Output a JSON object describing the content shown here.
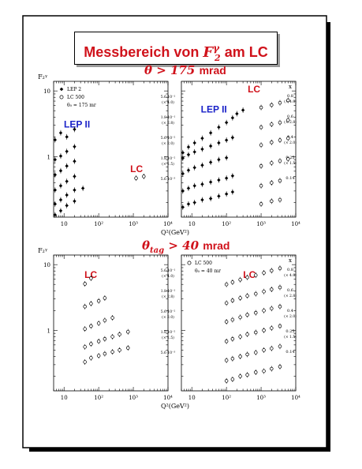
{
  "page": {
    "title_text": "Messbereich von",
    "title_math": "F",
    "title_sup": "γ",
    "title_sub": "2",
    "title_suffix": "am LC",
    "cut_top_math": "θ > 175",
    "cut_top_unit": "mrad",
    "cut_bottom_math": "θ",
    "cut_bottom_sub": "tag",
    "cut_bottom_rest": "> 40",
    "cut_bottom_unit": "mrad",
    "ylabel": "F₂ᵞ",
    "xlabel": "Q²(GeV²)"
  },
  "chart_data": [
    {
      "type": "scatter",
      "panel": "top-left",
      "xscale": "log",
      "yscale": "log",
      "xlim": [
        5,
        10000
      ],
      "ylim": [
        0.12,
        14
      ],
      "xticks": [
        "10",
        "10²",
        "10³",
        "10⁴"
      ],
      "yticks": [
        "1",
        "10"
      ],
      "legend": {
        "entries": [
          "LEP 2",
          "LC 500",
          "θ₀ = 175 mr"
        ],
        "placement": "top-left"
      },
      "annotations": [
        {
          "text": "LEP II",
          "color": "#1a22c8"
        },
        {
          "text": "LC",
          "color": "#d0121b"
        }
      ],
      "series": [
        {
          "name": "LEP 2",
          "marker": "filled",
          "points": [
            [
              5.5,
              0.13
            ],
            [
              8,
              0.15
            ],
            [
              12,
              0.18
            ],
            [
              20,
              0.21
            ],
            [
              5.5,
              0.19
            ],
            [
              8,
              0.22
            ],
            [
              12,
              0.26
            ],
            [
              20,
              0.31
            ],
            [
              35,
              0.33
            ],
            [
              5.5,
              0.31
            ],
            [
              8,
              0.36
            ],
            [
              12,
              0.42
            ],
            [
              20,
              0.5
            ],
            [
              5.5,
              0.53
            ],
            [
              8,
              0.61
            ],
            [
              12,
              0.72
            ],
            [
              20,
              0.85
            ],
            [
              5.5,
              0.9
            ],
            [
              8,
              1.02
            ],
            [
              12,
              1.2
            ],
            [
              20,
              1.42
            ],
            [
              5.5,
              1.8
            ],
            [
              8,
              2.3
            ],
            [
              12,
              2.0
            ],
            [
              20,
              2.6
            ]
          ]
        },
        {
          "name": "LC 500",
          "marker": "open",
          "points": [
            [
              1200,
              0.47
            ],
            [
              2000,
              0.5
            ]
          ]
        }
      ]
    },
    {
      "type": "scatter",
      "panel": "top-right",
      "xscale": "log",
      "yscale": "log",
      "xlim": [
        5,
        10000
      ],
      "ylim": [
        0.12,
        14
      ],
      "xticks": [
        "10",
        "10²",
        "10³",
        "10⁴"
      ],
      "yticks": [],
      "x_column": {
        "header": "x",
        "rows": [
          {
            "x": "0.8",
            "scale": "(× 4.0)",
            "mid_label": "5.6 10⁻¹"
          },
          {
            "x": "0.6",
            "scale": "(× 2.8)",
            "mid_label": "1.8 10⁻¹"
          },
          {
            "x": "0.4",
            "scale": "(× 2.0)",
            "mid_label": "5.6 10⁻²"
          },
          {
            "x": "0.25",
            "scale": "(× 1.5)",
            "mid_label": "1.8 10⁻²"
          },
          {
            "x": "0.14",
            "scale": "",
            "mid_label": "5.6 10⁻³"
          }
        ]
      },
      "annotations": [
        {
          "text": "LEP II",
          "color": "#1a22c8"
        },
        {
          "text": "LC",
          "color": "#d0121b"
        }
      ],
      "series": [
        {
          "name": "LEP 2",
          "marker": "filled",
          "points": [
            [
              5.5,
              0.17
            ],
            [
              8,
              0.19
            ],
            [
              12,
              0.2
            ],
            [
              20,
              0.22
            ],
            [
              35,
              0.23
            ],
            [
              60,
              0.25
            ],
            [
              100,
              0.27
            ],
            [
              150,
              0.29
            ],
            [
              5.5,
              0.3
            ],
            [
              8,
              0.33
            ],
            [
              12,
              0.36
            ],
            [
              20,
              0.38
            ],
            [
              35,
              0.41
            ],
            [
              60,
              0.44
            ],
            [
              100,
              0.47
            ],
            [
              150,
              0.51
            ],
            [
              5.5,
              0.55
            ],
            [
              8,
              0.62
            ],
            [
              12,
              0.68
            ],
            [
              20,
              0.74
            ],
            [
              35,
              0.82
            ],
            [
              60,
              0.9
            ],
            [
              100,
              0.96
            ],
            [
              5.5,
              0.95
            ],
            [
              8,
              1.07
            ],
            [
              12,
              1.18
            ],
            [
              20,
              1.3
            ],
            [
              35,
              1.45
            ],
            [
              60,
              1.62
            ],
            [
              100,
              1.78
            ],
            [
              150,
              1.95
            ],
            [
              5.5,
              1.15
            ],
            [
              8,
              1.4
            ],
            [
              12,
              1.62
            ],
            [
              20,
              1.9
            ],
            [
              35,
              2.3
            ],
            [
              60,
              2.8
            ],
            [
              100,
              3.3
            ],
            [
              150,
              3.9
            ],
            [
              200,
              4.5
            ],
            [
              300,
              5.1
            ]
          ]
        },
        {
          "name": "LC 500",
          "marker": "open",
          "points": [
            [
              1000,
              0.19
            ],
            [
              2000,
              0.21
            ],
            [
              3500,
              0.22
            ],
            [
              1000,
              0.36
            ],
            [
              2000,
              0.4
            ],
            [
              3500,
              0.43
            ],
            [
              1000,
              0.72
            ],
            [
              2000,
              0.8
            ],
            [
              3500,
              0.86
            ],
            [
              6000,
              0.92
            ],
            [
              1000,
              1.5
            ],
            [
              2000,
              1.65
            ],
            [
              3500,
              1.78
            ],
            [
              6000,
              1.9
            ],
            [
              1000,
              2.8
            ],
            [
              2000,
              3.1
            ],
            [
              3500,
              3.3
            ],
            [
              6000,
              3.6
            ],
            [
              1000,
              5.6
            ],
            [
              2000,
              6.1
            ],
            [
              3500,
              6.6
            ],
            [
              6000,
              7.2
            ]
          ]
        }
      ]
    },
    {
      "type": "scatter",
      "panel": "bottom-left",
      "xscale": "log",
      "yscale": "log",
      "xlim": [
        5,
        10000
      ],
      "ylim": [
        0.12,
        14
      ],
      "xticks": [
        "10",
        "10²",
        "10³",
        "10⁴"
      ],
      "yticks": [
        "1",
        "10"
      ],
      "annotations": [
        {
          "text": "LC",
          "color": "#d0121b"
        }
      ],
      "series": [
        {
          "name": "LC 500",
          "marker": "open",
          "points": [
            [
              40,
              0.33
            ],
            [
              60,
              0.38
            ],
            [
              100,
              0.41
            ],
            [
              150,
              0.44
            ],
            [
              250,
              0.47
            ],
            [
              400,
              0.5
            ],
            [
              700,
              0.54
            ],
            [
              40,
              0.56
            ],
            [
              60,
              0.62
            ],
            [
              100,
              0.68
            ],
            [
              150,
              0.74
            ],
            [
              250,
              0.8
            ],
            [
              400,
              0.87
            ],
            [
              700,
              0.95
            ],
            [
              40,
              1.05
            ],
            [
              60,
              1.16
            ],
            [
              100,
              1.28
            ],
            [
              150,
              1.42
            ],
            [
              250,
              1.55
            ],
            [
              40,
              2.3
            ],
            [
              60,
              2.55
            ],
            [
              100,
              2.8
            ],
            [
              150,
              3.1
            ],
            [
              40,
              5.1
            ],
            [
              60,
              6.2
            ]
          ]
        }
      ]
    },
    {
      "type": "scatter",
      "panel": "bottom-right",
      "xscale": "log",
      "yscale": "log",
      "xlim": [
        5,
        10000
      ],
      "ylim": [
        0.12,
        14
      ],
      "xticks": [
        "10",
        "10²",
        "10³",
        "10⁴"
      ],
      "yticks": [],
      "legend": {
        "entries": [
          "LC 500",
          "θ₀ = 40 mr"
        ],
        "placement": "top-left"
      },
      "x_column": {
        "header": "x",
        "rows": [
          {
            "x": "0.8",
            "scale": "(× 4.0)",
            "mid_label": "5.6 10⁻¹"
          },
          {
            "x": "0.6",
            "scale": "(× 2.8)",
            "mid_label": "1.8 10⁻¹"
          },
          {
            "x": "0.4",
            "scale": "(× 2.0)",
            "mid_label": "5.6 10⁻²"
          },
          {
            "x": "0.25",
            "scale": "(× 1.5)",
            "mid_label": "1.8 10⁻²"
          },
          {
            "x": "0.14",
            "scale": "",
            "mid_label": "5.6 10⁻³"
          }
        ]
      },
      "annotations": [
        {
          "text": "LC",
          "color": "#d0121b"
        }
      ],
      "series": [
        {
          "name": "LC 500",
          "marker": "open",
          "points": [
            [
              100,
              0.17
            ],
            [
              150,
              0.18
            ],
            [
              250,
              0.2
            ],
            [
              400,
              0.21
            ],
            [
              700,
              0.23
            ],
            [
              1200,
              0.24
            ],
            [
              2000,
              0.26
            ],
            [
              3500,
              0.28
            ],
            [
              100,
              0.35
            ],
            [
              150,
              0.37
            ],
            [
              250,
              0.4
            ],
            [
              400,
              0.43
            ],
            [
              700,
              0.46
            ],
            [
              1200,
              0.5
            ],
            [
              2000,
              0.53
            ],
            [
              3500,
              0.57
            ],
            [
              100,
              0.68
            ],
            [
              150,
              0.74
            ],
            [
              250,
              0.8
            ],
            [
              400,
              0.87
            ],
            [
              700,
              0.93
            ],
            [
              1200,
              1.0
            ],
            [
              2000,
              1.08
            ],
            [
              3500,
              1.16
            ],
            [
              100,
              1.35
            ],
            [
              150,
              1.45
            ],
            [
              250,
              1.58
            ],
            [
              400,
              1.72
            ],
            [
              700,
              1.85
            ],
            [
              1200,
              2.0
            ],
            [
              2000,
              2.15
            ],
            [
              3500,
              2.3
            ],
            [
              100,
              2.6
            ],
            [
              150,
              2.85
            ],
            [
              250,
              3.1
            ],
            [
              400,
              3.35
            ],
            [
              700,
              3.6
            ],
            [
              1200,
              3.9
            ],
            [
              2000,
              4.2
            ],
            [
              3500,
              4.5
            ],
            [
              100,
              5.0
            ],
            [
              150,
              5.4
            ],
            [
              250,
              5.9
            ],
            [
              400,
              6.4
            ],
            [
              700,
              6.9
            ],
            [
              1200,
              7.5
            ],
            [
              2000,
              8.1
            ],
            [
              3500,
              8.8
            ]
          ]
        }
      ]
    }
  ]
}
